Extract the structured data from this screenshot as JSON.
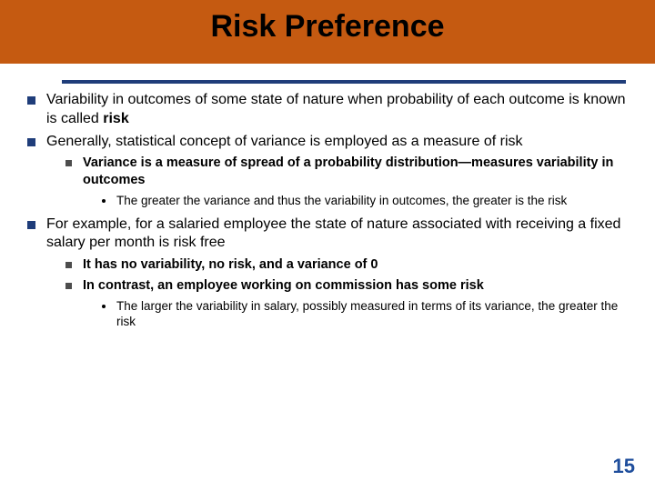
{
  "title": "Risk Preference",
  "colors": {
    "header_band": "#c55a11",
    "rule": "#1f3d7a",
    "bullet_l1": "#1f3d7a",
    "bullet_l2": "#4d4d4d",
    "page_num": "#1f4e9c",
    "background": "#ffffff",
    "text": "#000000"
  },
  "typography": {
    "title_fontsize": 34,
    "l1_fontsize": 16,
    "l2_fontsize": 14.5,
    "l3_fontsize": 13.5,
    "title_weight": "bold",
    "l2_weight": "bold"
  },
  "bullets": {
    "b1_pre": "Variability in outcomes of some state of nature when probability of each outcome is known is called ",
    "b1_bold": "risk",
    "b2": "Generally, statistical concept of variance is employed as a measure of risk",
    "b2_1": "Variance is a measure of spread of a probability distribution—measures variability in outcomes",
    "b2_1_1": "The greater the variance and thus the variability in outcomes, the greater is the risk",
    "b3": "For example, for a salaried employee the state of nature associated with receiving a fixed salary per month is risk free",
    "b3_1": "It has no variability, no risk, and a variance of 0",
    "b3_2": "In contrast, an employee working on commission has some risk",
    "b3_2_1": "The larger the variability in salary, possibly measured in terms of its variance, the greater the risk"
  },
  "page_number": "15"
}
